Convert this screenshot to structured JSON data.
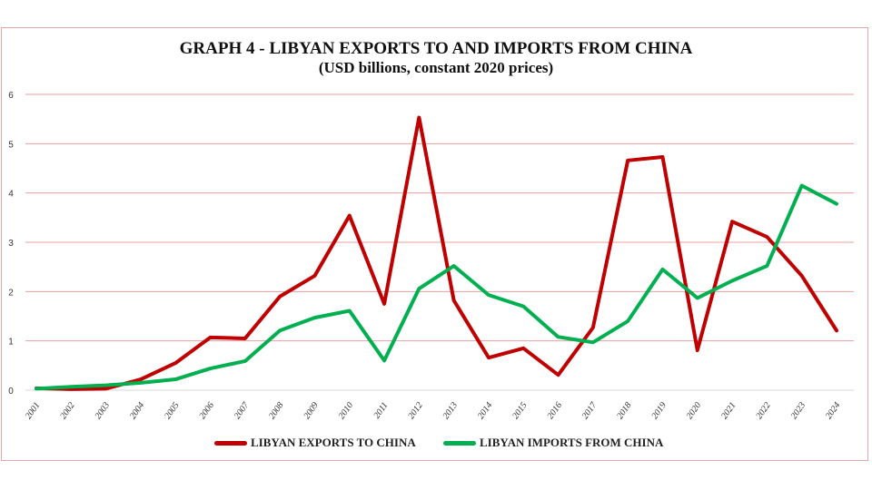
{
  "chart_data": {
    "type": "line",
    "title": "GRAPH 4 - LIBYAN EXPORTS TO AND IMPORTS FROM CHINA",
    "subtitle": "(USD billions, constant 2020 prices)",
    "xlabel": "",
    "ylabel": "",
    "ylim": [
      0,
      6
    ],
    "yticks": [
      "0",
      "1",
      "2",
      "3",
      "4",
      "5",
      "6"
    ],
    "grid": true,
    "legend_position": "bottom",
    "x": [
      "2001",
      "2002",
      "2003",
      "2004",
      "2005",
      "2006",
      "2007",
      "2008",
      "2009",
      "2010",
      "2011",
      "2012",
      "2013",
      "2014",
      "2015",
      "2016",
      "2017",
      "2018",
      "2019",
      "2020",
      "2021",
      "2022",
      "2023",
      "2024"
    ],
    "series": [
      {
        "name": "LIBYAN EXPORTS TO CHINA",
        "color": "#c00000",
        "values": [
          0.04,
          0.02,
          0.03,
          0.22,
          0.55,
          1.07,
          1.05,
          1.9,
          2.32,
          3.54,
          1.75,
          5.53,
          1.82,
          0.66,
          0.85,
          0.31,
          1.27,
          4.66,
          4.73,
          0.81,
          3.42,
          3.11,
          2.32,
          1.21
        ]
      },
      {
        "name": "LIBYAN IMPORTS FROM CHINA",
        "color": "#00b050",
        "values": [
          0.03,
          0.07,
          0.1,
          0.15,
          0.22,
          0.44,
          0.59,
          1.21,
          1.47,
          1.61,
          0.6,
          2.06,
          2.52,
          1.93,
          1.7,
          1.08,
          0.97,
          1.4,
          2.45,
          1.87,
          2.22,
          2.52,
          4.15,
          3.78
        ]
      }
    ]
  }
}
